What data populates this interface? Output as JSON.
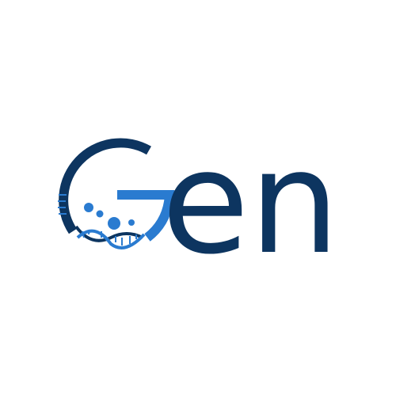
{
  "logo": {
    "text": "en"
  }
}
